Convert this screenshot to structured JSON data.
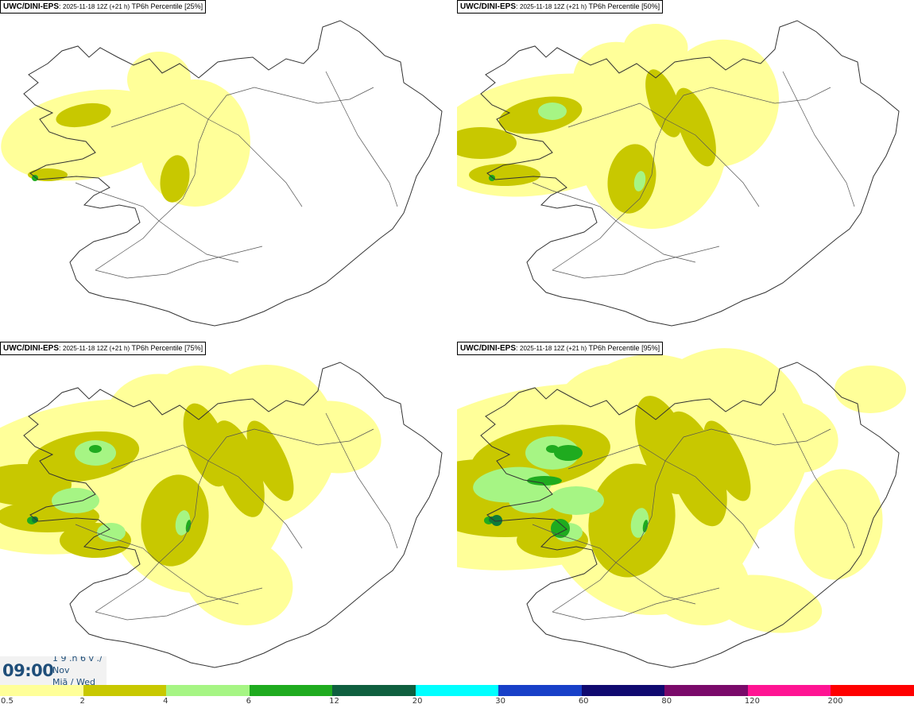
{
  "panels": [
    {
      "model": "UWC/DINI-EPS",
      "run": "2025-11-18 12Z (+21 h)",
      "product": "TP6h Percentile",
      "percentile": "[25%]",
      "level": 0
    },
    {
      "model": "UWC/DINI-EPS",
      "run": "2025-11-18 12Z (+21 h)",
      "product": "TP6h Percentile",
      "percentile": "[50%]",
      "level": 1
    },
    {
      "model": "UWC/DINI-EPS",
      "run": "2025-11-18 12Z (+21 h)",
      "product": "TP6h Percentile",
      "percentile": "[75%]",
      "level": 2
    },
    {
      "model": "UWC/DINI-EPS",
      "run": "2025-11-18 12Z (+21 h)",
      "product": "TP6h Percentile",
      "percentile": "[95%]",
      "level": 3
    }
  ],
  "valid_time": {
    "time": "09:00",
    "line1": "1 9 .n 6 v ./",
    "line2": "Nov",
    "line3": "Miã / Wed"
  },
  "legend": {
    "colors": [
      "#ffff99",
      "#c8c800",
      "#a6f584",
      "#1fab1f",
      "#0f5f3f",
      "#00ffff",
      "#1840c8",
      "#100a70",
      "#7a0a6a",
      "#ff1493",
      "#ff0000"
    ],
    "ticks": [
      "0.5",
      "2",
      "4",
      "6",
      "12",
      "20",
      "30",
      "60",
      "80",
      "120",
      "200"
    ]
  },
  "map_colors": {
    "light": "#ffff99",
    "olive": "#c8c800",
    "lightgreen": "#a6f584",
    "green": "#1fab1f",
    "darkgreen": "#0f7a3a",
    "coast": "#333333"
  }
}
